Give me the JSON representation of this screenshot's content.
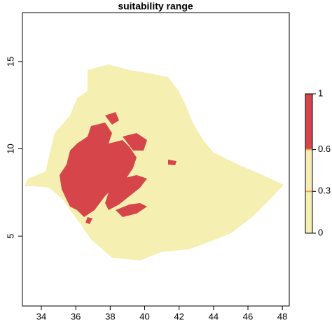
{
  "chart_data": {
    "type": "raster-map",
    "title": "suitability range",
    "xlim": [
      32.9,
      48.4
    ],
    "xticks": [
      34,
      36,
      38,
      40,
      42,
      44,
      46,
      48
    ],
    "ylim": [
      1.0,
      17.8
    ],
    "yticks": [
      5,
      10,
      15
    ],
    "legend": {
      "breaks": [
        0,
        0.3,
        0.6,
        1
      ],
      "colors": [
        "#f5efb1",
        "#f6ecb4",
        "#d6454a"
      ],
      "ticks": [
        0,
        0.3,
        0.6,
        1
      ]
    }
  }
}
